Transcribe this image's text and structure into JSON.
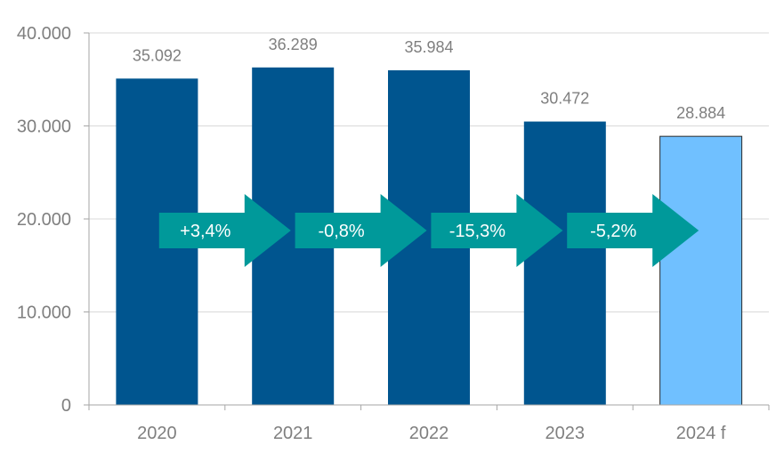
{
  "chart_data": {
    "type": "bar",
    "title": "",
    "xlabel": "",
    "ylabel": "",
    "categories": [
      "2020",
      "2021",
      "2022",
      "2023",
      "2024 f"
    ],
    "values": [
      35092,
      36289,
      35984,
      30472,
      28884
    ],
    "value_labels": [
      "35.092",
      "36.289",
      "35.984",
      "30.472",
      "28.884"
    ],
    "forecast_flags": [
      false,
      false,
      false,
      false,
      true
    ],
    "ylim": [
      0,
      40000
    ],
    "yticks": [
      0,
      10000,
      20000,
      30000,
      40000
    ],
    "ytick_labels": [
      "0",
      "10.000",
      "20.000",
      "30.000",
      "40.000"
    ],
    "grid": true,
    "legend": "none",
    "changes": [
      "+3,4%",
      "-0,8%",
      "-15,3%",
      "-5,2%"
    ],
    "colors": {
      "bar": "#00558f",
      "forecast_bar": "#70c0ff",
      "forecast_border": "#2b2b2b",
      "arrow": "#00999a",
      "grid": "#d9d9d9",
      "axis": "#a6a6a6",
      "text": "#7f7f7f"
    }
  }
}
